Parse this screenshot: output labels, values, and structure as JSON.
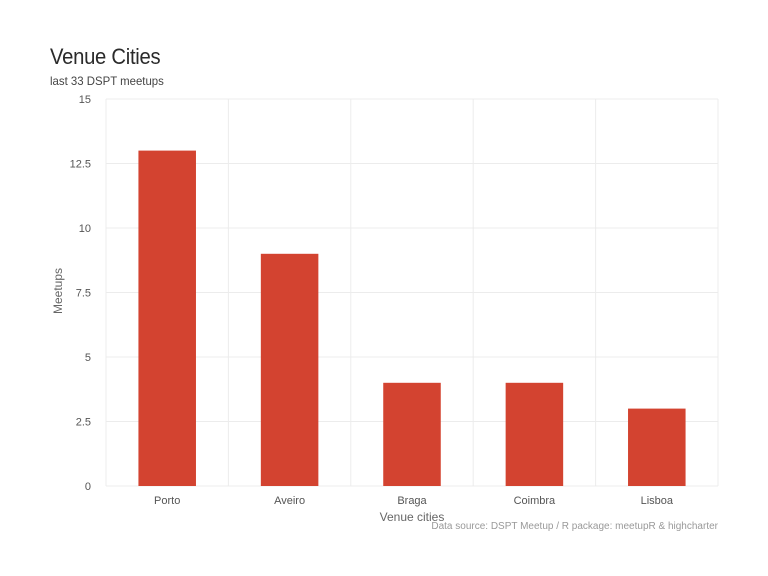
{
  "chart_data": {
    "type": "bar",
    "title": "Venue Cities",
    "subtitle": "last 33 DSPT meetups",
    "xlabel": "Venue cities",
    "ylabel": "Meetups",
    "categories": [
      "Porto",
      "Aveiro",
      "Braga",
      "Coimbra",
      "Lisboa"
    ],
    "values": [
      13,
      9,
      4,
      4,
      3
    ],
    "ylim": [
      0,
      15
    ],
    "yticks": [
      "0",
      "2.5",
      "5",
      "7.5",
      "10",
      "12.5",
      "15"
    ],
    "credits": "Data source: DSPT Meetup / R package: meetupR & highcharter",
    "bar_color": "#d34330",
    "grid": true,
    "legend": false
  }
}
